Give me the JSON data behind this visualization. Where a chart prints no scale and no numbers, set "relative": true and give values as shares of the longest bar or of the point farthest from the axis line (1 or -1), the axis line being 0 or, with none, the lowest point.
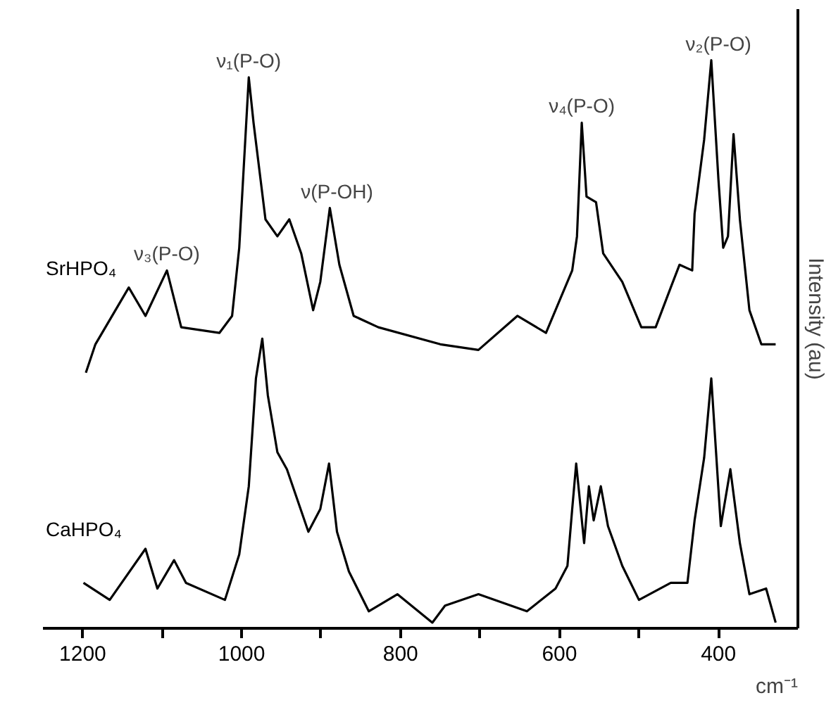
{
  "chart_data": {
    "type": "line",
    "relative": true,
    "xlabel": "cm⁻¹",
    "ylabel": "Intensity (au)",
    "xlim": [
      1250,
      300
    ],
    "xticks": [
      1200,
      {
        "value": 1100,
        "label": null
      },
      1000,
      {
        "value": 900,
        "label": null
      },
      800,
      {
        "value": 700,
        "label": null
      },
      600,
      {
        "value": 500,
        "label": null
      },
      400
    ],
    "grid": false,
    "legend": false,
    "series": [
      {
        "name": "SrHPO₄",
        "color": "#000000",
        "x": [
          1196,
          1184,
          1142,
          1121,
          1094,
          1076,
          1028,
          1012,
          1003,
          991,
          985,
          970,
          955,
          940,
          925,
          910,
          901,
          889,
          877,
          859,
          828,
          750,
          702,
          653,
          617,
          599,
          584,
          578,
          572,
          566,
          554,
          545,
          521,
          497,
          479,
          460,
          449,
          433,
          430,
          418,
          409,
          400,
          394,
          388,
          381,
          373,
          361,
          346,
          328
        ],
        "values": [
          0.45,
          0.5,
          0.6,
          0.55,
          0.63,
          0.53,
          0.52,
          0.55,
          0.67,
          0.97,
          0.89,
          0.72,
          0.69,
          0.72,
          0.66,
          0.56,
          0.61,
          0.74,
          0.64,
          0.55,
          0.53,
          0.5,
          0.49,
          0.55,
          0.52,
          0.58,
          0.63,
          0.69,
          0.89,
          0.76,
          0.75,
          0.66,
          0.61,
          0.53,
          0.53,
          0.6,
          0.64,
          0.63,
          0.73,
          0.86,
          1.0,
          0.79,
          0.67,
          0.69,
          0.87,
          0.72,
          0.56,
          0.5,
          0.5
        ]
      },
      {
        "name": "CaHPO₄",
        "color": "#000000",
        "x": [
          1199,
          1166,
          1121,
          1106,
          1085,
          1070,
          1021,
          1003,
          991,
          982,
          974,
          967,
          955,
          943,
          916,
          901,
          890,
          880,
          865,
          840,
          804,
          760,
          744,
          702,
          641,
          605,
          590,
          584,
          579,
          569,
          563,
          557,
          548,
          539,
          521,
          500,
          460,
          439,
          430,
          418,
          409,
          397,
          385,
          373,
          361,
          340,
          328
        ],
        "values": [
          0.08,
          0.05,
          0.14,
          0.07,
          0.12,
          0.08,
          0.05,
          0.13,
          0.25,
          0.44,
          0.51,
          0.41,
          0.31,
          0.28,
          0.17,
          0.21,
          0.29,
          0.17,
          0.1,
          0.03,
          0.06,
          0.01,
          0.04,
          0.06,
          0.03,
          0.07,
          0.11,
          0.21,
          0.29,
          0.15,
          0.25,
          0.19,
          0.25,
          0.18,
          0.11,
          0.05,
          0.08,
          0.08,
          0.19,
          0.3,
          0.44,
          0.18,
          0.28,
          0.15,
          0.06,
          0.07,
          0.01
        ]
      }
    ],
    "annotations": [
      {
        "text": "ν₃(P-O)",
        "x": 1094,
        "y": 0.63
      },
      {
        "text": "ν₁(P-O)",
        "x": 991,
        "y": 0.97
      },
      {
        "text": "ν(P-OH)",
        "x": 880,
        "y": 0.74
      },
      {
        "text": "ν₄(P-O)",
        "x": 572,
        "y": 0.89
      },
      {
        "text": "ν₂(P-O)",
        "x": 400,
        "y": 1.0
      }
    ]
  }
}
